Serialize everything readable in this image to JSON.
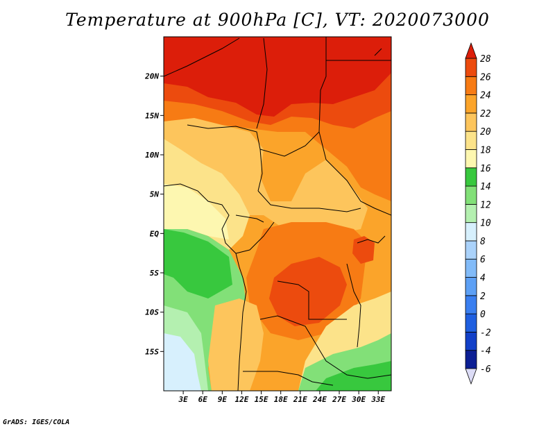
{
  "title": "Temperature at 900hPa [C], VT: 2020073000",
  "credit": "GrADS: IGES/COLA",
  "map": {
    "lon_range": [
      0,
      35
    ],
    "lat_range": [
      -20,
      25
    ],
    "lat_ticks": [
      {
        "value": 20,
        "label": "20N"
      },
      {
        "value": 15,
        "label": "15N"
      },
      {
        "value": 10,
        "label": "10N"
      },
      {
        "value": 5,
        "label": "5N"
      },
      {
        "value": 0,
        "label": "EQ"
      },
      {
        "value": -5,
        "label": "5S"
      },
      {
        "value": -10,
        "label": "10S"
      },
      {
        "value": -15,
        "label": "15S"
      }
    ],
    "lon_ticks": [
      {
        "value": 3,
        "label": "3E"
      },
      {
        "value": 6,
        "label": "6E"
      },
      {
        "value": 9,
        "label": "9E"
      },
      {
        "value": 12,
        "label": "12E"
      },
      {
        "value": 15,
        "label": "15E"
      },
      {
        "value": 18,
        "label": "18E"
      },
      {
        "value": 21,
        "label": "21E"
      },
      {
        "value": 24,
        "label": "24E"
      },
      {
        "value": 27,
        "label": "27E"
      },
      {
        "value": 30,
        "label": "30E"
      },
      {
        "value": 33,
        "label": "33E"
      }
    ]
  },
  "colorbar": {
    "bins": [
      {
        "low": -6,
        "high": -4,
        "color": "#0c1f94"
      },
      {
        "low": -4,
        "high": -2,
        "color": "#1240c8"
      },
      {
        "low": -2,
        "high": 0,
        "color": "#1f5fe0"
      },
      {
        "low": 0,
        "high": 2,
        "color": "#3a7ff0"
      },
      {
        "low": 2,
        "high": 4,
        "color": "#5da0f5"
      },
      {
        "low": 4,
        "high": 6,
        "color": "#82bbf8"
      },
      {
        "low": 6,
        "high": 8,
        "color": "#aad2fa"
      },
      {
        "low": 8,
        "high": 10,
        "color": "#d7f0fd"
      },
      {
        "low": 10,
        "high": 12,
        "color": "#b4f0b0"
      },
      {
        "low": 12,
        "high": 14,
        "color": "#82e078"
      },
      {
        "low": 14,
        "high": 16,
        "color": "#38c83e"
      },
      {
        "low": 16,
        "high": 18,
        "color": "#fdf7b0"
      },
      {
        "low": 18,
        "high": 20,
        "color": "#fce38a"
      },
      {
        "low": 20,
        "high": 22,
        "color": "#fdc55c"
      },
      {
        "low": 22,
        "high": 24,
        "color": "#fba42a"
      },
      {
        "low": 24,
        "high": 26,
        "color": "#f77b14"
      },
      {
        "low": 26,
        "high": 28,
        "color": "#ec4b0e"
      }
    ],
    "below_color": "#dcdcf6",
    "above_color": "#dc1e0a",
    "labels": [
      "-6",
      "-4",
      "-2",
      "0",
      "2",
      "4",
      "6",
      "8",
      "10",
      "12",
      "14",
      "16",
      "18",
      "20",
      "22",
      "24",
      "26",
      "28"
    ]
  }
}
